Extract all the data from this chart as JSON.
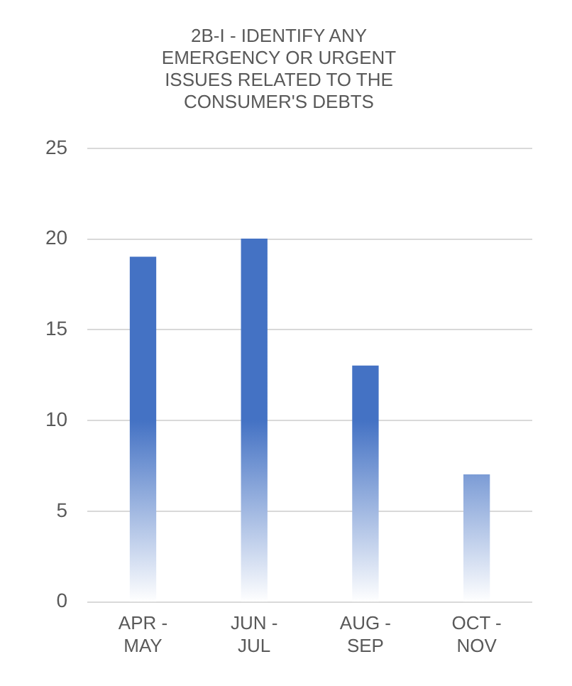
{
  "chart_data": {
    "type": "bar",
    "title": "2B-I - IDENTIFY ANY EMERGENCY OR URGENT ISSUES RELATED TO THE CONSUMER'S DEBTS",
    "categories": [
      "APR - MAY",
      "JUN - JUL",
      "AUG - SEP",
      "OCT - NOV"
    ],
    "values": [
      19,
      20,
      13,
      7
    ],
    "color": "#4472c4",
    "ylim": [
      0,
      25
    ],
    "yticks": [
      0,
      5,
      10,
      15,
      20,
      25
    ],
    "grid": "y",
    "legend": false
  }
}
